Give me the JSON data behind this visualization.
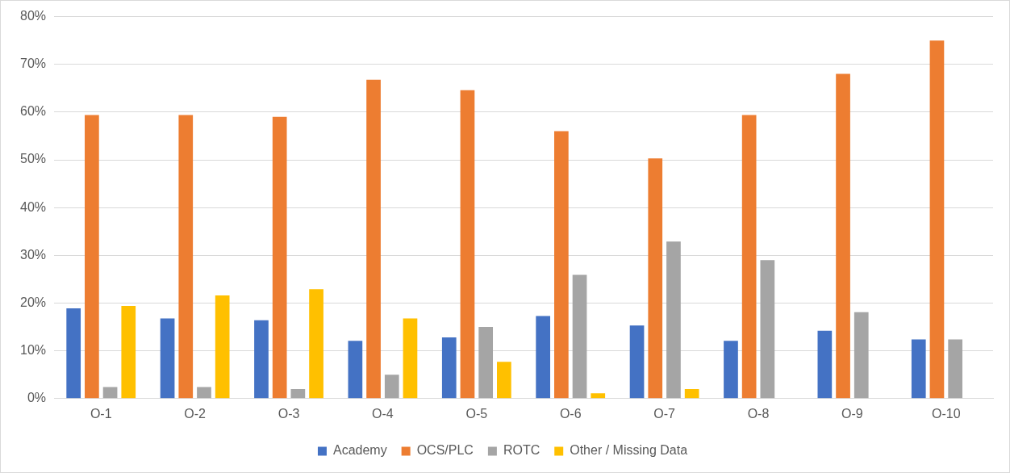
{
  "chart_data": {
    "type": "bar",
    "categories": [
      "O-1",
      "O-2",
      "O-3",
      "O-4",
      "O-5",
      "O-6",
      "O-7",
      "O-8",
      "O-9",
      "O-10"
    ],
    "series": [
      {
        "name": "Academy",
        "color": "#4472c4",
        "values": [
          18.9,
          16.8,
          16.4,
          12.1,
          12.8,
          17.3,
          15.3,
          12.1,
          14.2,
          12.4
        ]
      },
      {
        "name": "OCS/PLC",
        "color": "#ed7d31",
        "values": [
          59.4,
          59.4,
          59.0,
          66.8,
          64.6,
          56.0,
          50.3,
          59.4,
          68.0,
          75.0
        ]
      },
      {
        "name": "ROTC",
        "color": "#a5a5a5",
        "values": [
          2.4,
          2.4,
          2.0,
          5.0,
          15.0,
          25.9,
          32.9,
          29.0,
          18.1,
          12.4
        ]
      },
      {
        "name": "Other / Missing Data",
        "color": "#ffc000",
        "values": [
          19.4,
          21.6,
          22.9,
          16.8,
          7.7,
          1.1,
          2.0,
          0,
          0,
          0
        ]
      }
    ],
    "ylim": [
      0,
      80
    ],
    "yticks": [
      {
        "value": 0,
        "label": "0%"
      },
      {
        "value": 10,
        "label": "10%"
      },
      {
        "value": 20,
        "label": "20%"
      },
      {
        "value": 30,
        "label": "30%"
      },
      {
        "value": 40,
        "label": "40%"
      },
      {
        "value": 50,
        "label": "50%"
      },
      {
        "value": 60,
        "label": "60%"
      },
      {
        "value": 70,
        "label": "70%"
      },
      {
        "value": 80,
        "label": "80%"
      }
    ],
    "grid": "y",
    "legend": "bottom"
  }
}
